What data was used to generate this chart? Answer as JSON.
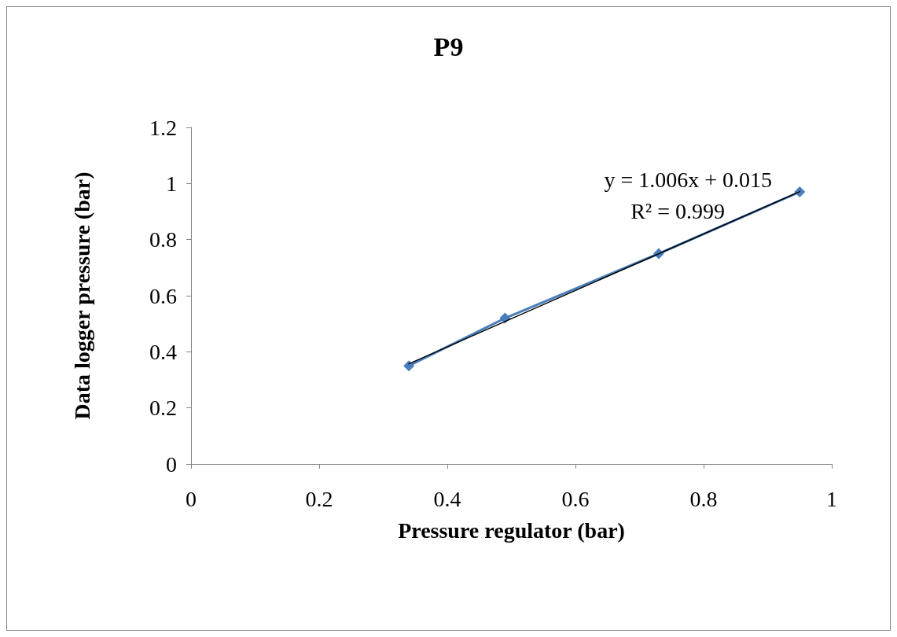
{
  "chart_data": {
    "type": "line",
    "title": "P9",
    "xlabel": "Pressure regulator (bar)",
    "ylabel": "Data logger pressure (bar)",
    "xlim": [
      0,
      1
    ],
    "xticks": [
      0,
      0.2,
      0.4,
      0.6,
      0.8,
      1
    ],
    "ylim": [
      0,
      1.2
    ],
    "yticks": [
      0,
      0.2,
      0.4,
      0.6,
      0.8,
      1,
      1.2
    ],
    "grid": false,
    "marker": "diamond",
    "line_style": "solid",
    "series": [
      {
        "color": "#4a7ebb",
        "x": [
          0.34,
          0.49,
          0.73,
          0.95
        ],
        "values": [
          0.35,
          0.52,
          0.75,
          0.97
        ]
      },
      {
        "color": "#000000",
        "marker": "none",
        "x": [
          0.34,
          0.95
        ],
        "values": [
          0.357,
          0.971
        ]
      }
    ],
    "annotations": [
      "y = 1.006x + 0.015",
      "R² = 0.999"
    ]
  }
}
